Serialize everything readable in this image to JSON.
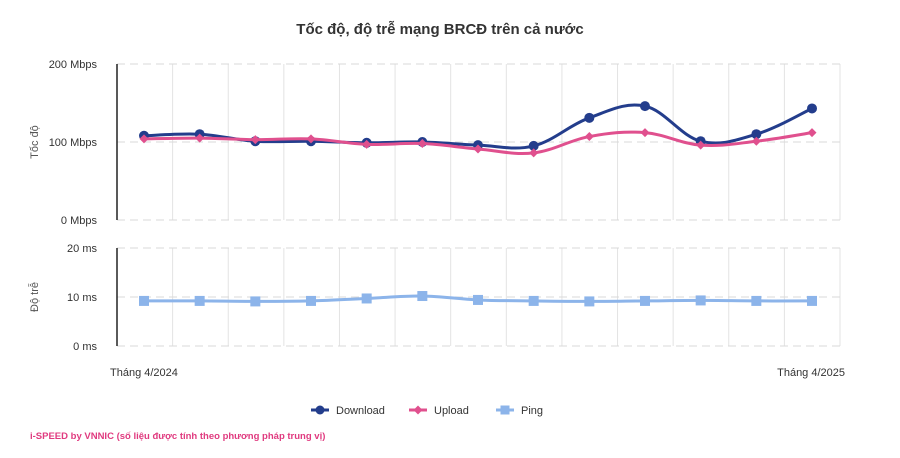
{
  "chart_data": {
    "type": "line",
    "title": "Tốc độ, độ trễ mạng BRCĐ trên cả nước",
    "x_labels_shown": [
      "Tháng 4/2024",
      "Tháng 4/2025"
    ],
    "panels": [
      {
        "name": "speed",
        "ylabel": "Tốc độ",
        "unit": "Mbps",
        "ylim": [
          0,
          200
        ],
        "ticks": [
          0,
          100,
          200
        ],
        "tick_labels": [
          "0 Mbps",
          "100 Mbps",
          "200 Mbps"
        ],
        "series": [
          {
            "name": "Download",
            "color": "#233d8c",
            "marker": "circle",
            "values": [
              108,
              110,
              101,
              101,
              99,
              100,
              96,
              95,
              131,
              146,
              101,
              110,
              143
            ]
          },
          {
            "name": "Upload",
            "color": "#e0508e",
            "marker": "diamond",
            "values": [
              104,
              105,
              103,
              104,
              97,
              98,
              91,
              86,
              107,
              112,
              96,
              101,
              112
            ]
          }
        ]
      },
      {
        "name": "latency",
        "ylabel": "Độ trễ",
        "unit": "ms",
        "ylim": [
          0,
          20
        ],
        "ticks": [
          0,
          10,
          20
        ],
        "tick_labels": [
          "0 ms",
          "10 ms",
          "20 ms"
        ],
        "series": [
          {
            "name": "Ping",
            "color": "#8cb4ea",
            "marker": "square",
            "values": [
              9.2,
              9.2,
              9.1,
              9.2,
              9.7,
              10.2,
              9.4,
              9.2,
              9.1,
              9.2,
              9.3,
              9.2,
              9.2
            ]
          }
        ]
      }
    ],
    "legend": [
      "Download",
      "Upload",
      "Ping"
    ],
    "legend_position": "bottom",
    "grid": true
  },
  "footer": "i-SPEED by VNNIC (số liệu được tính theo phương pháp trung vị)"
}
